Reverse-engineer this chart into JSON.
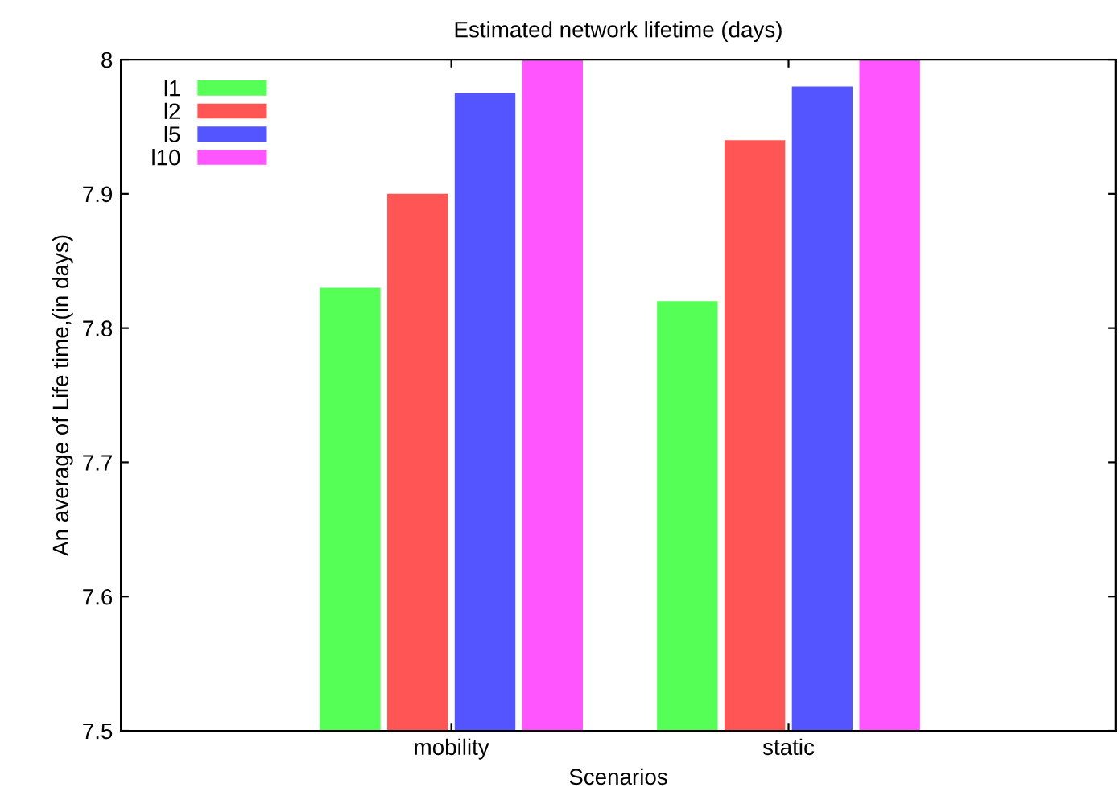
{
  "chart_data": {
    "type": "bar",
    "title": "Estimated network lifetime (days)",
    "xlabel": "Scenarios",
    "ylabel": "An average of Life time,(in days)",
    "categories": [
      "mobility",
      "static"
    ],
    "series": [
      {
        "name": "l1",
        "color": "#55ff55",
        "values": [
          7.83,
          7.82
        ]
      },
      {
        "name": "l2",
        "color": "#ff5555",
        "values": [
          7.9,
          7.94
        ]
      },
      {
        "name": "l5",
        "color": "#5555ff",
        "values": [
          7.975,
          7.98
        ]
      },
      {
        "name": "l10",
        "color": "#ff55ff",
        "values": [
          8.0,
          8.0
        ]
      }
    ],
    "ylim": [
      7.5,
      8
    ],
    "yticks": [
      7.5,
      7.6,
      7.7,
      7.8,
      7.9,
      8
    ],
    "grid": false,
    "legend": "top left"
  }
}
